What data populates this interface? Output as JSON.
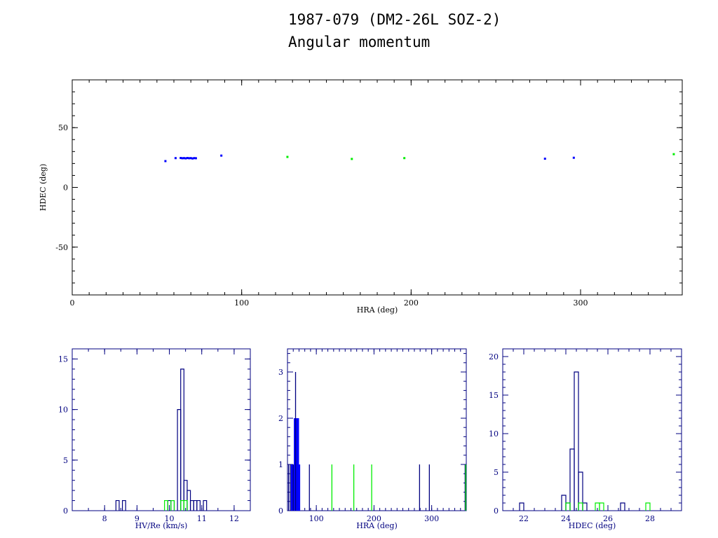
{
  "title": [
    "1987-079 (DM2-26L SOZ-2)",
    "Angular momentum"
  ],
  "colors": {
    "primary": "#0000ff",
    "secondary": "#00ee00",
    "outline": "#000080"
  },
  "chart_data": [
    {
      "type": "scatter",
      "xlabel": "HRA (deg)",
      "ylabel": "HDEC (deg)",
      "xlim": [
        0,
        360
      ],
      "ylim": [
        -90,
        90
      ],
      "xticks": [
        0,
        100,
        200,
        300
      ],
      "yticks": [
        -50,
        0,
        50
      ],
      "series": [
        {
          "color": "#0000ff",
          "points": [
            [
              55,
              22
            ],
            [
              61,
              24.5
            ],
            [
              64,
              24.6
            ],
            [
              65,
              24.4
            ],
            [
              66,
              24.5
            ],
            [
              67,
              24.3
            ],
            [
              68,
              24.6
            ],
            [
              69,
              24.4
            ],
            [
              70,
              24.5
            ],
            [
              71,
              24.2
            ],
            [
              72,
              24.5
            ],
            [
              73,
              24.4
            ],
            [
              88,
              26.6
            ],
            [
              279,
              24
            ],
            [
              296,
              24.8
            ]
          ]
        },
        {
          "color": "#00ee00",
          "points": [
            [
              127,
              25.5
            ],
            [
              165,
              23.8
            ],
            [
              196,
              24.5
            ],
            [
              355,
              27.8
            ]
          ]
        }
      ]
    },
    {
      "type": "histogram",
      "xlabel": "HV/Re (km/s)",
      "xlim": [
        7,
        12.5
      ],
      "ylim": [
        0,
        16
      ],
      "xticks": [
        8,
        9,
        10,
        11,
        12
      ],
      "yticks": [
        0,
        5,
        10,
        15
      ],
      "bin_width": 0.1,
      "series": [
        {
          "color": "#000080",
          "bins": [
            [
              8.4,
              1
            ],
            [
              8.6,
              1
            ],
            [
              10.0,
              1
            ],
            [
              10.1,
              1
            ],
            [
              10.3,
              10
            ],
            [
              10.4,
              14
            ],
            [
              10.5,
              3
            ],
            [
              10.6,
              2
            ],
            [
              10.7,
              1
            ],
            [
              10.8,
              1
            ],
            [
              10.9,
              1
            ],
            [
              11.1,
              1
            ]
          ]
        },
        {
          "color": "#00ee00",
          "bins": [
            [
              9.9,
              1
            ],
            [
              10.1,
              1
            ],
            [
              10.4,
              1
            ],
            [
              10.5,
              1
            ]
          ]
        }
      ]
    },
    {
      "type": "histogram",
      "xlabel": "HRA (deg)",
      "xlim": [
        50,
        360
      ],
      "ylim": [
        0,
        3.5
      ],
      "xticks": [
        100,
        200,
        300
      ],
      "yticks": [
        0,
        1,
        2,
        3
      ],
      "series": [
        {
          "color": "#0000ff",
          "filled_bins": [
            [
              56,
              61,
              1
            ],
            [
              61,
              64,
              2
            ],
            [
              64,
              67,
              2
            ],
            [
              67,
              70,
              2
            ],
            [
              70,
              72,
              1
            ]
          ]
        },
        {
          "color": "#000080",
          "lines": [
            [
              52,
              1
            ],
            [
              55,
              1
            ],
            [
              60,
              1
            ],
            [
              64,
              3
            ],
            [
              88,
              1
            ],
            [
              279,
              1
            ],
            [
              296,
              1
            ],
            [
              358,
              1
            ]
          ]
        },
        {
          "color": "#00ee00",
          "lines": [
            [
              127,
              1
            ],
            [
              165,
              1
            ],
            [
              196,
              1
            ],
            [
              359,
              1
            ]
          ]
        }
      ]
    },
    {
      "type": "histogram",
      "xlabel": "HDEC (deg)",
      "xlim": [
        21,
        29.5
      ],
      "ylim": [
        0,
        21
      ],
      "xticks": [
        22,
        24,
        26,
        28
      ],
      "yticks": [
        0,
        5,
        10,
        15,
        20
      ],
      "bin_width": 0.2,
      "series": [
        {
          "color": "#000080",
          "bins": [
            [
              21.9,
              1
            ],
            [
              23.9,
              2
            ],
            [
              24.1,
              1
            ],
            [
              24.3,
              8
            ],
            [
              24.5,
              18
            ],
            [
              24.7,
              5
            ],
            [
              24.9,
              1
            ],
            [
              26.7,
              1
            ]
          ]
        },
        {
          "color": "#00ee00",
          "bins": [
            [
              24.1,
              1
            ],
            [
              24.7,
              1
            ],
            [
              25.5,
              1
            ],
            [
              25.7,
              1
            ],
            [
              27.9,
              1
            ]
          ]
        }
      ]
    }
  ]
}
